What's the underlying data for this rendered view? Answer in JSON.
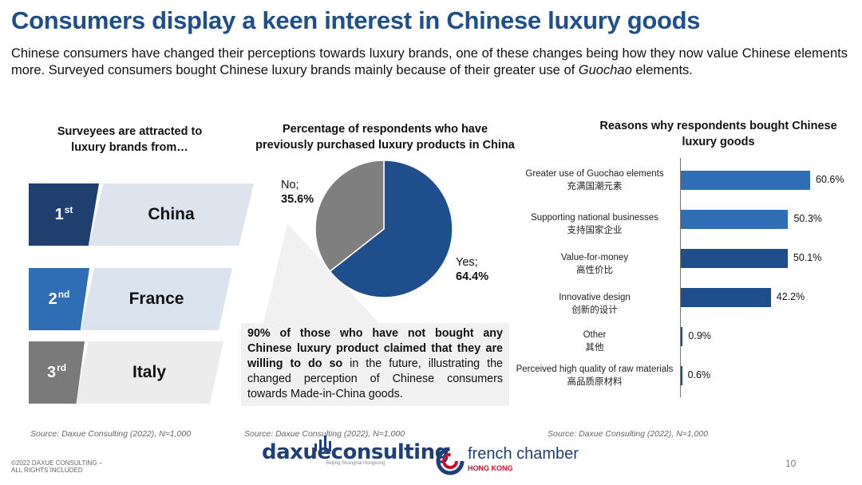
{
  "title": "Consumers display a keen interest in Chinese luxury goods",
  "intro": {
    "text_before": "Chinese consumers have changed their perceptions towards luxury brands, one of these changes being how they now value Chinese elements more. Surveyed consumers bought Chinese luxury brands mainly because of their greater use of ",
    "italic": "Guochao",
    "text_after": " elements."
  },
  "left_panel": {
    "title_line1": "Surveyees are attracted to",
    "title_line2": "luxury brands from…",
    "ranks": [
      {
        "num": "1",
        "suffix": "st",
        "country": "China",
        "color": "#1f3f6e",
        "back": "#dde4ee"
      },
      {
        "num": "2",
        "suffix": "nd",
        "country": "France",
        "color": "#2f6db4",
        "back": "#dbe3ef"
      },
      {
        "num": "3",
        "suffix": "rd",
        "country": "Italy",
        "color": "#7a7a7a",
        "back": "#ececec"
      }
    ],
    "source": "Source: Daxue Consulting (2022), N=1,000"
  },
  "pie_panel": {
    "title_line1": "Percentage of respondents who have",
    "title_line2": "previously purchased luxury products in China",
    "source": "Source: Daxue Consulting (2022), N=1,000",
    "callout": {
      "bold": "90% of those who have not bought any Chinese luxury product claimed that they are willing to do so",
      "rest": " in the future, illustrating the changed perception of Chinese consumers towards Made-in-China goods."
    }
  },
  "bar_panel": {
    "title_line1": "Reasons why respondents bought Chinese",
    "title_line2": "luxury goods",
    "source": "Source: Daxue Consulting (2022), N=1,000"
  },
  "chart_data": [
    {
      "type": "pie",
      "title": "Percentage of respondents who have previously purchased luxury products in China",
      "slices": [
        {
          "label": "Yes",
          "value": 64.4,
          "display": "64.4%",
          "color": "#1f4e8c"
        },
        {
          "label": "No",
          "value": 35.6,
          "display": "35.6%",
          "color": "#7f7f7f"
        }
      ]
    },
    {
      "type": "bar",
      "orientation": "horizontal",
      "title": "Reasons why respondents bought Chinese luxury goods",
      "categories": [
        {
          "en": "Greater use of Guochao elements",
          "cn": "充满国潮元素"
        },
        {
          "en": "Supporting national businesses",
          "cn": "支持国家企业"
        },
        {
          "en": "Value-for-money",
          "cn": "高性价比"
        },
        {
          "en": "Innovative design",
          "cn": "创新的设计"
        },
        {
          "en": "Other",
          "cn": "其他"
        },
        {
          "en": "Perceived high quality of raw materials",
          "cn": "高品质原材料"
        }
      ],
      "values": [
        60.6,
        50.3,
        50.1,
        42.2,
        0.9,
        0.6
      ],
      "value_labels": [
        "60.6%",
        "50.3%",
        "50.1%",
        "42.2%",
        "0.9%",
        "0.6%"
      ],
      "colors": [
        "#2f6db4",
        "#2f6db4",
        "#1f4e8c",
        "#1f4e8c",
        "#1f4e8c",
        "#1f4e8c"
      ],
      "xlim": [
        0,
        70
      ]
    }
  ],
  "footer": {
    "copyright_line1": "©2022 DAXUE CONSULTING –",
    "copyright_line2": "ALL RIGHTS INCLUDED",
    "daxue_logo": "daxueconsulting",
    "daxue_tag": "Beijing  Shanghai  Hongkong",
    "fc_logo": "french chamber",
    "fc_hk": "HONG KONG",
    "page_number": "10"
  }
}
